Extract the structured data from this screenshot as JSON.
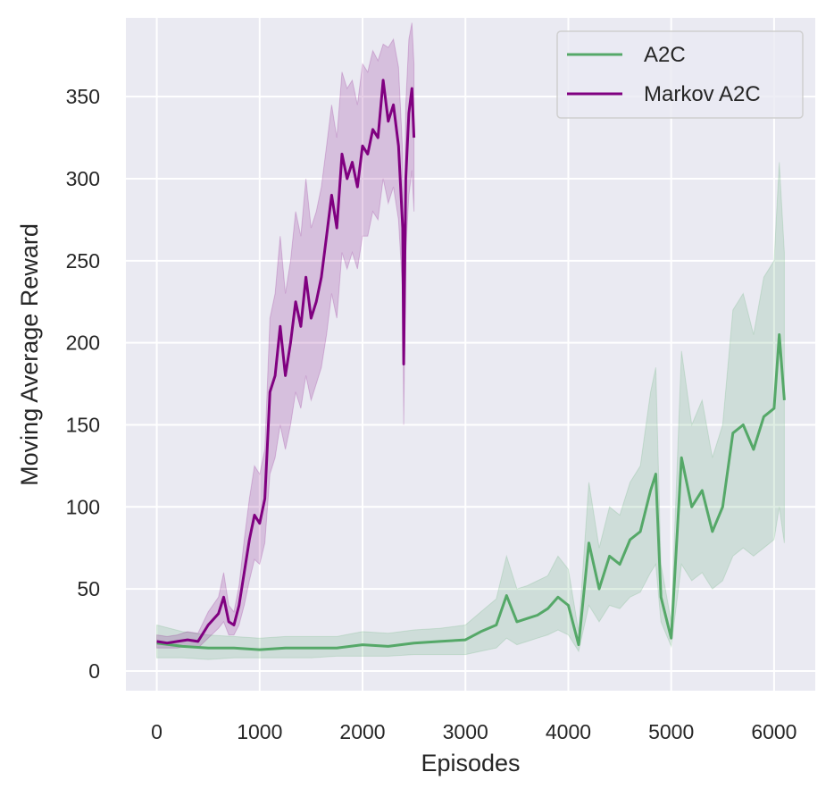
{
  "chart_data": {
    "type": "line",
    "title": "",
    "xlabel": "Episodes",
    "ylabel": "Moving Average Reward",
    "xlim": [
      -300,
      6400
    ],
    "ylim": [
      -12,
      398
    ],
    "x_ticks": [
      0,
      1000,
      2000,
      3000,
      4000,
      5000,
      6000
    ],
    "y_ticks": [
      0,
      50,
      100,
      150,
      200,
      250,
      300,
      350
    ],
    "grid": true,
    "legend_position": "top-right",
    "colors": {
      "background": "#eaeaf2",
      "grid": "#ffffff",
      "text": "#262626"
    },
    "series": [
      {
        "name": "A2C",
        "color": "#55a868",
        "band_opacity": 0.18,
        "x": [
          0,
          250,
          500,
          750,
          1000,
          1250,
          1500,
          1750,
          2000,
          2250,
          2500,
          2750,
          3000,
          3150,
          3300,
          3400,
          3500,
          3600,
          3700,
          3800,
          3900,
          4000,
          4100,
          4200,
          4300,
          4400,
          4500,
          4600,
          4700,
          4800,
          4850,
          4900,
          5000,
          5100,
          5200,
          5300,
          5400,
          5500,
          5600,
          5700,
          5800,
          5900,
          6000,
          6050,
          6100
        ],
        "y": [
          17,
          15,
          14,
          14,
          13,
          14,
          14,
          14,
          16,
          15,
          17,
          18,
          19,
          24,
          28,
          46,
          30,
          32,
          34,
          38,
          45,
          40,
          16,
          78,
          50,
          70,
          65,
          80,
          85,
          110,
          120,
          45,
          20,
          130,
          100,
          110,
          85,
          100,
          145,
          150,
          135,
          155,
          160,
          205,
          165
        ],
        "lower": [
          8,
          8,
          7,
          8,
          8,
          8,
          8,
          9,
          9,
          9,
          10,
          10,
          10,
          12,
          14,
          20,
          16,
          18,
          20,
          22,
          25,
          22,
          12,
          40,
          30,
          40,
          38,
          45,
          48,
          60,
          65,
          30,
          15,
          65,
          55,
          60,
          50,
          55,
          70,
          75,
          70,
          75,
          80,
          100,
          78
        ],
        "upper": [
          28,
          24,
          22,
          21,
          20,
          21,
          21,
          21,
          24,
          23,
          25,
          26,
          28,
          36,
          44,
          70,
          50,
          52,
          55,
          58,
          70,
          62,
          24,
          115,
          75,
          100,
          95,
          115,
          125,
          170,
          185,
          65,
          30,
          195,
          150,
          165,
          130,
          150,
          220,
          230,
          205,
          240,
          250,
          310,
          255
        ]
      },
      {
        "name": "Markov A2C",
        "color": "#800080",
        "band_opacity": 0.18,
        "x": [
          0,
          100,
          200,
          300,
          400,
          500,
          600,
          650,
          700,
          750,
          800,
          850,
          900,
          950,
          1000,
          1050,
          1100,
          1150,
          1200,
          1250,
          1300,
          1350,
          1400,
          1450,
          1500,
          1550,
          1600,
          1650,
          1700,
          1750,
          1800,
          1850,
          1900,
          1950,
          2000,
          2050,
          2100,
          2150,
          2200,
          2250,
          2300,
          2350,
          2390,
          2400,
          2420,
          2450,
          2480,
          2500
        ],
        "y": [
          18,
          17,
          18,
          19,
          18,
          28,
          35,
          45,
          30,
          28,
          40,
          60,
          80,
          95,
          90,
          105,
          170,
          180,
          210,
          180,
          200,
          225,
          210,
          240,
          215,
          225,
          240,
          265,
          290,
          270,
          315,
          300,
          310,
          295,
          320,
          315,
          330,
          325,
          360,
          335,
          345,
          320,
          270,
          187,
          300,
          340,
          355,
          325
        ],
        "lower": [
          14,
          14,
          14,
          15,
          14,
          20,
          26,
          30,
          22,
          22,
          28,
          40,
          55,
          68,
          65,
          78,
          120,
          130,
          150,
          135,
          150,
          170,
          160,
          180,
          165,
          175,
          185,
          205,
          230,
          215,
          255,
          245,
          255,
          245,
          265,
          265,
          280,
          275,
          300,
          285,
          295,
          275,
          230,
          150,
          255,
          290,
          305,
          280
        ],
        "upper": [
          22,
          21,
          22,
          24,
          23,
          36,
          45,
          60,
          40,
          36,
          52,
          80,
          105,
          125,
          120,
          135,
          215,
          230,
          265,
          230,
          250,
          280,
          265,
          300,
          270,
          280,
          295,
          320,
          345,
          325,
          365,
          355,
          360,
          345,
          370,
          365,
          378,
          372,
          382,
          380,
          385,
          368,
          315,
          230,
          345,
          385,
          395,
          370
        ]
      }
    ]
  }
}
